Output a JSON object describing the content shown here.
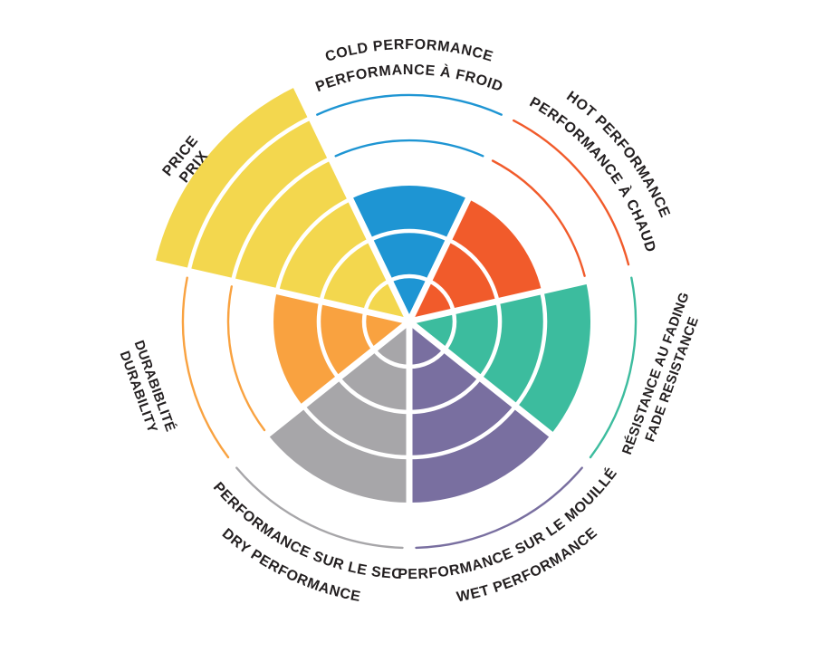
{
  "page": {
    "background": "#ffffff",
    "text_color": "#231f20"
  },
  "chart_data": {
    "type": "radar",
    "subtype": "sector-wheel",
    "max": 5,
    "legend_position": "around-circle",
    "grid": "concentric-rings-5",
    "sectors": [
      {
        "id": "cold-performance",
        "label_en": "COLD PERFORMANCE",
        "label_fr": "PERFORMANCE À FROID",
        "value": 3,
        "color": "#1e95d3",
        "unfilled_level_arcs": [
          4,
          5
        ]
      },
      {
        "id": "hot-performance",
        "label_en": "HOT PERFORMANCE",
        "label_fr": "PERFORMANCE À CHAUD",
        "value": 3,
        "color": "#f15b2b",
        "unfilled_level_arcs": [
          4,
          5
        ]
      },
      {
        "id": "fade-resistance",
        "label_en": "FADE RESISTANCE",
        "label_fr": "RÉSISTANCE AU FADING",
        "value": 4,
        "color": "#3cbc9e",
        "unfilled_level_arcs": [
          5
        ]
      },
      {
        "id": "wet-performance",
        "label_en": "WET PERFORMANCE",
        "label_fr": "PERFORMANCE SUR LE MOUILLÉ",
        "value": 4,
        "color": "#796fa0",
        "unfilled_level_arcs": [
          5
        ]
      },
      {
        "id": "dry-performance",
        "label_en": "DRY PERFORMANCE",
        "label_fr": "PERFORMANCE SUR LE SEC",
        "value": 4,
        "color": "#a7a6a9",
        "unfilled_level_arcs": [
          5
        ]
      },
      {
        "id": "durability",
        "label_en": "DURABILITY",
        "label_fr": "DURABIBLITÉ",
        "value": 3,
        "color": "#f9a240",
        "unfilled_level_arcs": [
          4,
          5
        ]
      },
      {
        "id": "price",
        "label_en": "PRICE",
        "label_fr": "PRIX",
        "value": 5,
        "overshoot": true,
        "color": "#f3d74e",
        "unfilled_level_arcs": []
      }
    ]
  }
}
